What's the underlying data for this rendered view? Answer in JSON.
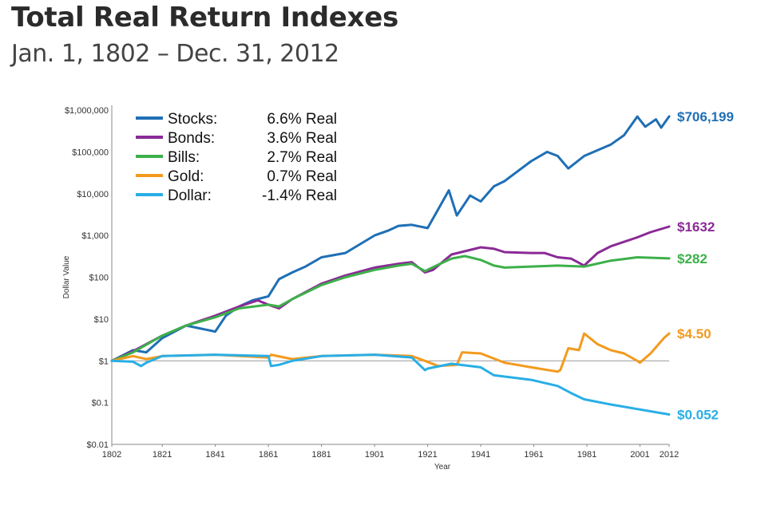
{
  "title": "Total Real Return Indexes",
  "subtitle": "Jan. 1, 1802 – Dec. 31, 2012",
  "chart_data": {
    "type": "line",
    "title": "Total Real Return Indexes",
    "subtitle": "Jan. 1, 1802 – Dec. 31, 2012",
    "xlabel": "Year",
    "ylabel": "Dollar Value",
    "yscale": "log",
    "xlim": [
      1802,
      2012
    ],
    "ylim": [
      0.01,
      1000000
    ],
    "x_ticks": [
      1802,
      1821,
      1841,
      1861,
      1881,
      1901,
      1921,
      1941,
      1961,
      1981,
      2001,
      2012
    ],
    "y_ticks": [
      {
        "value": 1000000,
        "label": "$1,000,000"
      },
      {
        "value": 100000,
        "label": "$100,000"
      },
      {
        "value": 10000,
        "label": "$10,000"
      },
      {
        "value": 1000,
        "label": "$1,000"
      },
      {
        "value": 100,
        "label": "$100"
      },
      {
        "value": 10,
        "label": "$10"
      },
      {
        "value": 1,
        "label": "$1"
      },
      {
        "value": 0.1,
        "label": "$0.1"
      },
      {
        "value": 0.01,
        "label": "$0.01"
      }
    ],
    "reference_line": 1,
    "legend_position": "top-left",
    "series": [
      {
        "name": "Stocks",
        "legend_name": "Stocks:",
        "legend_rate": "6.6% Real",
        "color": "#1f6fb5",
        "end_label": "$706,199",
        "x": [
          1802,
          1810,
          1815,
          1821,
          1830,
          1835,
          1841,
          1845,
          1850,
          1855,
          1861,
          1865,
          1870,
          1875,
          1881,
          1890,
          1901,
          1906,
          1910,
          1915,
          1921,
          1929,
          1932,
          1937,
          1941,
          1946,
          1950,
          1960,
          1966,
          1970,
          1974,
          1980,
          1990,
          1995,
          2000,
          2003,
          2007,
          2009,
          2012
        ],
        "y": [
          1,
          1.8,
          1.6,
          3.5,
          7,
          6,
          5,
          12,
          20,
          28,
          35,
          90,
          130,
          180,
          300,
          380,
          1000,
          1300,
          1700,
          1800,
          1500,
          12000,
          3000,
          9000,
          6500,
          15000,
          20000,
          60000,
          100000,
          80000,
          40000,
          80000,
          150000,
          250000,
          700000,
          400000,
          600000,
          380000,
          706199
        ]
      },
      {
        "name": "Bonds",
        "legend_name": "Bonds:",
        "legend_rate": "3.6% Real",
        "color": "#8a2a96",
        "end_label": "$1632",
        "x": [
          1802,
          1810,
          1821,
          1830,
          1841,
          1850,
          1857,
          1861,
          1865,
          1870,
          1881,
          1890,
          1901,
          1910,
          1915,
          1920,
          1923,
          1930,
          1941,
          1946,
          1950,
          1960,
          1965,
          1970,
          1975,
          1980,
          1985,
          1990,
          2000,
          2005,
          2012
        ],
        "y": [
          1,
          1.7,
          4,
          7,
          12,
          20,
          28,
          22,
          18,
          30,
          70,
          110,
          170,
          210,
          230,
          130,
          150,
          350,
          520,
          480,
          400,
          380,
          380,
          300,
          280,
          190,
          380,
          550,
          900,
          1200,
          1632
        ]
      },
      {
        "name": "Bills",
        "legend_name": "Bills:",
        "legend_rate": "2.7% Real",
        "color": "#3db04a",
        "end_label": "$282",
        "x": [
          1802,
          1810,
          1821,
          1830,
          1841,
          1850,
          1861,
          1865,
          1870,
          1881,
          1890,
          1901,
          1910,
          1915,
          1920,
          1925,
          1930,
          1935,
          1941,
          1946,
          1950,
          1960,
          1970,
          1980,
          1990,
          2000,
          2012
        ],
        "y": [
          1,
          1.6,
          4,
          7,
          11,
          18,
          22,
          20,
          30,
          65,
          100,
          150,
          190,
          210,
          140,
          200,
          280,
          320,
          260,
          190,
          170,
          180,
          190,
          180,
          250,
          300,
          282
        ]
      },
      {
        "name": "Gold",
        "legend_name": "Gold:",
        "legend_rate": "0.7% Real",
        "color": "#f39a1e",
        "end_label": "$4.50",
        "x": [
          1802,
          1810,
          1815,
          1821,
          1841,
          1861,
          1862,
          1870,
          1881,
          1901,
          1915,
          1920,
          1925,
          1932,
          1934,
          1941,
          1950,
          1960,
          1970,
          1971,
          1974,
          1978,
          1980,
          1985,
          1990,
          1995,
          2000,
          2001,
          2005,
          2010,
          2012
        ],
        "y": [
          1,
          1.3,
          1.1,
          1.3,
          1.4,
          1.2,
          1.4,
          1.1,
          1.3,
          1.4,
          1.3,
          1.0,
          0.75,
          0.8,
          1.6,
          1.5,
          0.9,
          0.7,
          0.55,
          0.6,
          2,
          1.8,
          4.5,
          2.5,
          1.8,
          1.5,
          1.0,
          0.9,
          1.5,
          3.5,
          4.5
        ]
      },
      {
        "name": "Dollar",
        "legend_name": "Dollar:",
        "legend_rate": "-1.4% Real",
        "color": "#29aee6",
        "end_label": "$0.052",
        "x": [
          1802,
          1810,
          1813,
          1815,
          1821,
          1841,
          1861,
          1862,
          1865,
          1870,
          1881,
          1901,
          1915,
          1920,
          1921,
          1930,
          1941,
          1946,
          1950,
          1960,
          1970,
          1975,
          1980,
          1990,
          2000,
          2012
        ],
        "y": [
          1,
          0.95,
          0.75,
          0.9,
          1.3,
          1.4,
          1.3,
          0.75,
          0.8,
          1.0,
          1.3,
          1.4,
          1.2,
          0.6,
          0.65,
          0.85,
          0.7,
          0.45,
          0.42,
          0.35,
          0.25,
          0.17,
          0.12,
          0.09,
          0.07,
          0.052
        ]
      }
    ]
  }
}
